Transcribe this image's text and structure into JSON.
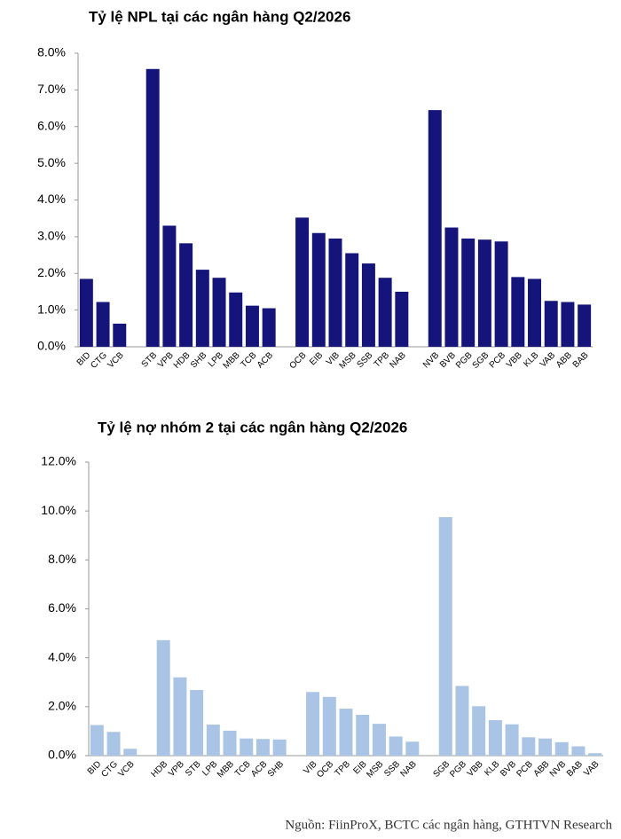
{
  "chart_data": [
    {
      "type": "bar",
      "title": "Tỷ lệ NPL tại các ngân hàng Q2/2026",
      "categories": [
        "BID",
        "CTG",
        "VCB",
        null,
        "STB",
        "VPB",
        "HDB",
        "SHB",
        "LPB",
        "MBB",
        "TCB",
        "ACB",
        null,
        "OCB",
        "EIB",
        "VIB",
        "MSB",
        "SSB",
        "TPB",
        "NAB",
        null,
        "NVB",
        "BVB",
        "PGB",
        "SGB",
        "PCB",
        "VBB",
        "KLB",
        "VAB",
        "ABB",
        "BAB"
      ],
      "values": [
        1.85,
        1.22,
        0.63,
        null,
        7.57,
        3.3,
        2.82,
        2.1,
        1.88,
        1.48,
        1.12,
        1.05,
        null,
        3.52,
        3.1,
        2.95,
        2.55,
        2.27,
        1.88,
        1.5,
        null,
        6.45,
        3.25,
        2.95,
        2.92,
        2.87,
        1.9,
        1.85,
        1.25,
        1.22,
        1.15
      ],
      "color": "#14147a",
      "ylim": [
        0,
        8
      ],
      "yticks": [
        {
          "value": 0,
          "label": "0.0%"
        },
        {
          "value": 1,
          "label": "1.0%"
        },
        {
          "value": 2,
          "label": "2.0%"
        },
        {
          "value": 3,
          "label": "3.0%"
        },
        {
          "value": 4,
          "label": "4.0%"
        },
        {
          "value": 5,
          "label": "5.0%"
        },
        {
          "value": 6,
          "label": "6.0%"
        },
        {
          "value": 7,
          "label": "7.0%"
        },
        {
          "value": 8,
          "label": "8.0%"
        }
      ],
      "grid": false
    },
    {
      "type": "bar",
      "title": "Tỷ lệ nợ nhóm 2 tại các ngân hàng Q2/2026",
      "categories": [
        "BID",
        "CTG",
        "VCB",
        null,
        "HDB",
        "VPB",
        "STB",
        "LPB",
        "MBB",
        "TCB",
        "ACB",
        "SHB",
        null,
        "VIB",
        "OCB",
        "TPB",
        "EIB",
        "MSB",
        "SSB",
        "NAB",
        null,
        "SGB",
        "PGB",
        "VBB",
        "KLB",
        "BVB",
        "PCB",
        "ABB",
        "NVB",
        "BAB",
        "VAB"
      ],
      "values": [
        1.25,
        0.97,
        0.28,
        null,
        4.72,
        3.2,
        2.68,
        1.27,
        1.02,
        0.7,
        0.68,
        0.66,
        null,
        2.6,
        2.4,
        1.92,
        1.67,
        1.3,
        0.78,
        0.57,
        null,
        9.75,
        2.85,
        2.02,
        1.45,
        1.28,
        0.75,
        0.7,
        0.55,
        0.38,
        0.1
      ],
      "color": "#a9c4e4",
      "ylim": [
        0,
        12
      ],
      "yticks": [
        {
          "value": 0,
          "label": "0.0%"
        },
        {
          "value": 2,
          "label": "2.0%"
        },
        {
          "value": 4,
          "label": "4.0%"
        },
        {
          "value": 6,
          "label": "6.0%"
        },
        {
          "value": 8,
          "label": "8.0%"
        },
        {
          "value": 10,
          "label": "10.0%"
        },
        {
          "value": 12,
          "label": "12.0%"
        }
      ],
      "grid": false
    }
  ],
  "source": "Nguồn: FiinProX, BCTC các ngân hàng, GTHTVN Research"
}
